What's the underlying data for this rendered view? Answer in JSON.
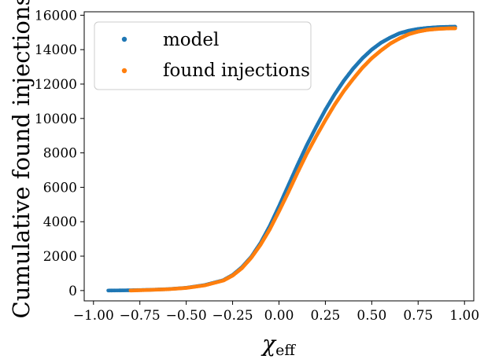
{
  "chart_data": {
    "type": "scatter",
    "title": "",
    "xlabel": "χ",
    "xlabel_sub": "eff",
    "ylabel": "Cumulative found injections",
    "xlim": [
      -1.05,
      1.05
    ],
    "ylim": [
      -600,
      16200
    ],
    "xticks": [
      -1.0,
      -0.75,
      -0.5,
      -0.25,
      0.0,
      0.25,
      0.5,
      0.75,
      1.0
    ],
    "xtick_labels": [
      "−1.00",
      "−0.75",
      "−0.50",
      "−0.25",
      "0.00",
      "0.25",
      "0.50",
      "0.75",
      "1.00"
    ],
    "yticks": [
      0,
      2000,
      4000,
      6000,
      8000,
      10000,
      12000,
      14000,
      16000
    ],
    "ytick_labels": [
      "0",
      "2000",
      "4000",
      "6000",
      "8000",
      "10000",
      "12000",
      "14000",
      "16000"
    ],
    "grid": false,
    "legend_position": "top-left",
    "series": [
      {
        "name": "model",
        "color": "#1f77b4",
        "x": [
          -0.92,
          -0.8,
          -0.7,
          -0.6,
          -0.5,
          -0.4,
          -0.3,
          -0.25,
          -0.2,
          -0.15,
          -0.1,
          -0.05,
          0.0,
          0.05,
          0.1,
          0.15,
          0.2,
          0.25,
          0.3,
          0.35,
          0.4,
          0.45,
          0.5,
          0.55,
          0.6,
          0.65,
          0.7,
          0.75,
          0.8,
          0.85,
          0.9,
          0.95
        ],
        "y": [
          0,
          15,
          40,
          80,
          160,
          320,
          600,
          900,
          1350,
          1950,
          2750,
          3750,
          4900,
          6100,
          7300,
          8450,
          9500,
          10500,
          11400,
          12200,
          12900,
          13500,
          14000,
          14400,
          14700,
          14950,
          15100,
          15200,
          15260,
          15300,
          15320,
          15330
        ]
      },
      {
        "name": "found injections",
        "color": "#ff7f0e",
        "x": [
          -0.8,
          -0.7,
          -0.6,
          -0.5,
          -0.4,
          -0.3,
          -0.25,
          -0.2,
          -0.15,
          -0.1,
          -0.05,
          0.0,
          0.05,
          0.1,
          0.15,
          0.2,
          0.25,
          0.3,
          0.35,
          0.4,
          0.45,
          0.5,
          0.55,
          0.6,
          0.65,
          0.7,
          0.75,
          0.8,
          0.85,
          0.9,
          0.95
        ],
        "y": [
          0,
          35,
          75,
          150,
          300,
          580,
          870,
          1300,
          1900,
          2650,
          3550,
          4600,
          5700,
          6850,
          7950,
          8950,
          9900,
          10800,
          11600,
          12300,
          12950,
          13500,
          13950,
          14350,
          14650,
          14900,
          15050,
          15150,
          15200,
          15230,
          15240
        ]
      }
    ]
  }
}
